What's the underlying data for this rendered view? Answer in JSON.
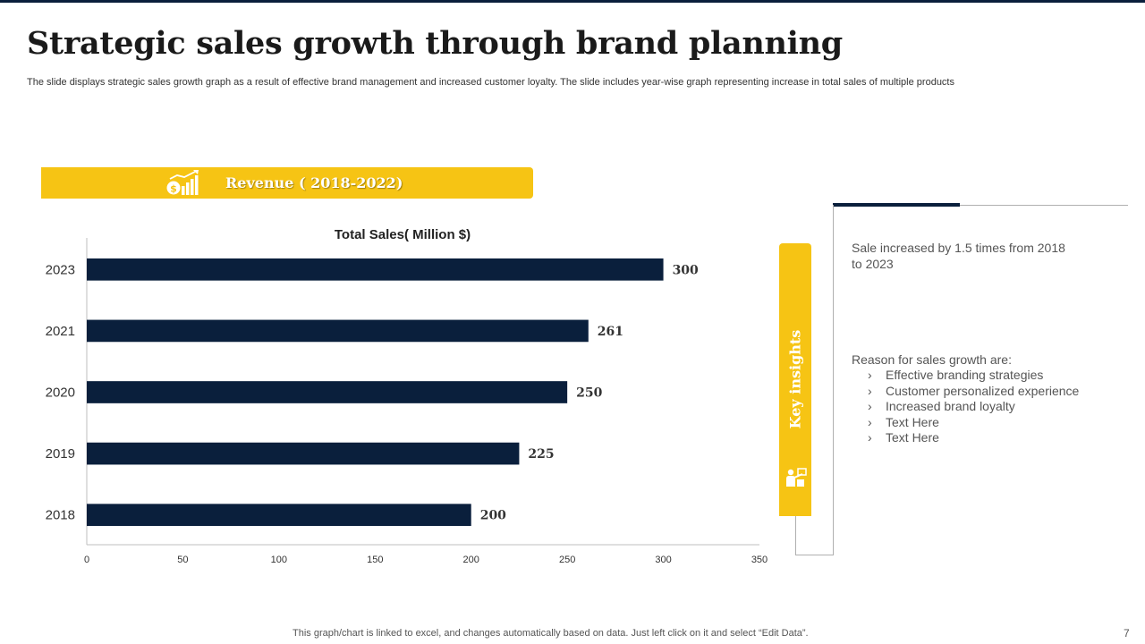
{
  "slide": {
    "title": "Strategic sales growth through brand planning",
    "subtitle": "The slide displays strategic sales growth graph as a result of effective  brand management and increased customer loyalty. The slide includes year-wise graph representing increase in total sales of multiple products",
    "footnote": "This graph/chart is linked to excel,  and changes automatically based on data. Just left click on it and select “Edit Data”.",
    "page_number": "7"
  },
  "revenue_banner": {
    "label": "Revenue ( 2018-2022)",
    "icon": "money-growth-chart-icon"
  },
  "chart_data": {
    "type": "bar",
    "orientation": "horizontal",
    "title": "Total Sales( Million $)",
    "categories": [
      "2023",
      "2021",
      "2020",
      "2019",
      "2018"
    ],
    "values": [
      300,
      261,
      250,
      225,
      200
    ],
    "xlim": [
      0,
      350
    ],
    "xticks": [
      0,
      50,
      100,
      150,
      200,
      250,
      300,
      350
    ],
    "grid": false,
    "bar_color": "#0a1f3c"
  },
  "key_insights": {
    "label": "Key insights",
    "icon": "presenter-icon",
    "insight": "Sale increased by 1.5 times from 2018 to 2023",
    "reasons_title": "Reason for sales growth are:",
    "reasons": [
      "Effective branding strategies",
      "Customer personalized experience",
      "Increased brand loyalty",
      "Text Here",
      "Text Here"
    ],
    "bullet": "›"
  },
  "colors": {
    "navy": "#0a1f3c",
    "yellow": "#f6c414",
    "text_gray": "#555555"
  }
}
